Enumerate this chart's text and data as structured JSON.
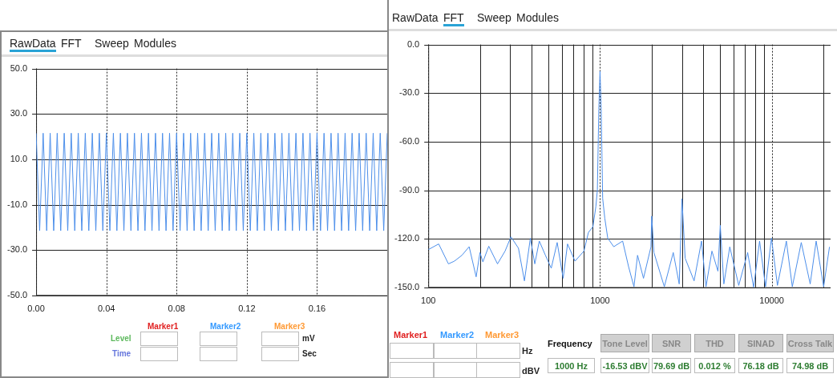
{
  "chart_data": [
    {
      "type": "line",
      "color": "#4d8fea",
      "grid": true,
      "line_style": "solid",
      "xlim": [
        0,
        0.2
      ],
      "ylim": [
        -50,
        50
      ],
      "xticks": [
        {
          "value": 0,
          "label": "0.00"
        },
        {
          "value": 0.04,
          "label": "0.04"
        },
        {
          "value": 0.08,
          "label": "0.08"
        },
        {
          "value": 0.12,
          "label": "0.12"
        },
        {
          "value": 0.16,
          "label": "0.16"
        }
      ],
      "yticks": [
        {
          "value": -50,
          "label": "-50.0"
        },
        {
          "value": -30,
          "label": "-30.0"
        },
        {
          "value": -10,
          "label": "-10.0"
        },
        {
          "value": 10,
          "label": "10.0"
        },
        {
          "value": 30,
          "label": "30.0"
        },
        {
          "value": 50,
          "label": "50.0"
        }
      ],
      "x": [
        0,
        0.002,
        0.004,
        0.006,
        0.008,
        0.01,
        0.012,
        0.014,
        0.016,
        0.018,
        0.02,
        0.022,
        0.024,
        0.026,
        0.028,
        0.03,
        0.032,
        0.034,
        0.036,
        0.038,
        0.04,
        0.042,
        0.044,
        0.046,
        0.048,
        0.05,
        0.052,
        0.054,
        0.056,
        0.058,
        0.06,
        0.062,
        0.064,
        0.066,
        0.068,
        0.07,
        0.072,
        0.074,
        0.076,
        0.078,
        0.08,
        0.082,
        0.084,
        0.086,
        0.088,
        0.09,
        0.092,
        0.094,
        0.096,
        0.098,
        0.1,
        0.102,
        0.104,
        0.106,
        0.108,
        0.11,
        0.112,
        0.114,
        0.116,
        0.118,
        0.12,
        0.122,
        0.124,
        0.126,
        0.128,
        0.13,
        0.132,
        0.134,
        0.136,
        0.138,
        0.14,
        0.142,
        0.144,
        0.146,
        0.148,
        0.15,
        0.152,
        0.154,
        0.156,
        0.158,
        0.16,
        0.162,
        0.164,
        0.166,
        0.168,
        0.17,
        0.172,
        0.174,
        0.176,
        0.178,
        0.18,
        0.182,
        0.184,
        0.186,
        0.188,
        0.19,
        0.192,
        0.194,
        0.196,
        0.198,
        0.2
      ],
      "values": [
        21.5,
        -21.5,
        21.5,
        -21.5,
        21.5,
        -21.5,
        21.5,
        -21.5,
        21.5,
        -21.5,
        21.5,
        -21.5,
        21.5,
        -21.5,
        21.5,
        -21.5,
        21.5,
        -21.5,
        21.5,
        -21.5,
        21.5,
        -21.5,
        21.5,
        -21.5,
        21.5,
        -21.5,
        21.5,
        -21.5,
        21.5,
        -21.5,
        21.5,
        -21.5,
        21.5,
        -21.5,
        21.5,
        -21.5,
        21.5,
        -21.5,
        21.5,
        -21.5,
        21.5,
        -21.5,
        21.5,
        -21.5,
        21.5,
        -21.5,
        21.5,
        -21.5,
        21.5,
        -21.5,
        21.5,
        -21.5,
        21.5,
        -21.5,
        21.5,
        -21.5,
        21.5,
        -21.5,
        21.5,
        -21.5,
        21.5,
        -21.5,
        21.5,
        -21.5,
        21.5,
        -21.5,
        21.5,
        -21.5,
        21.5,
        -21.5,
        21.5,
        -21.5,
        21.5,
        -21.5,
        21.5,
        -21.5,
        21.5,
        -21.5,
        21.5,
        -21.5,
        21.5,
        -21.5,
        21.5,
        -21.5,
        21.5,
        -21.5,
        21.5,
        -21.5,
        21.5,
        -21.5,
        21.5,
        -21.5,
        21.5,
        -21.5,
        21.5,
        -21.5,
        21.5,
        -21.5,
        21.5,
        -21.5,
        21.5
      ],
      "annotations": [
        "RawData",
        "FFT",
        "Sweep",
        "Modules",
        "Marker1",
        "Marker2",
        "Marker3",
        "Level",
        "Time",
        "mV",
        "Sec"
      ]
    },
    {
      "type": "line",
      "color": "#4d8fea",
      "grid": true,
      "line_style": "solid",
      "log": "x",
      "xlim": [
        100,
        22000
      ],
      "ylim": [
        -150,
        0
      ],
      "xticks": [
        100,
        {
          "value": 200,
          "label": null
        },
        {
          "value": 300,
          "label": null
        },
        {
          "value": 400,
          "label": null
        },
        {
          "value": 500,
          "label": null
        },
        {
          "value": 600,
          "label": null
        },
        {
          "value": 700,
          "label": null
        },
        {
          "value": 800,
          "label": null
        },
        {
          "value": 900,
          "label": null
        },
        1000,
        {
          "value": 2000,
          "label": null
        },
        {
          "value": 3000,
          "label": null
        },
        {
          "value": 4000,
          "label": null
        },
        {
          "value": 5000,
          "label": null
        },
        {
          "value": 6000,
          "label": null
        },
        {
          "value": 7000,
          "label": null
        },
        {
          "value": 8000,
          "label": null
        },
        {
          "value": 9000,
          "label": null
        },
        10000,
        {
          "value": 20000,
          "label": null
        }
      ],
      "yticks": [
        {
          "value": -150,
          "label": "-150.0"
        },
        {
          "value": -120,
          "label": "-120.0"
        },
        {
          "value": -90,
          "label": "-90.0"
        },
        {
          "value": -60,
          "label": "-60.0"
        },
        {
          "value": -30,
          "label": "-30.0"
        },
        {
          "value": 0,
          "label": "0.0"
        }
      ],
      "x": [
        100,
        115,
        131,
        142,
        157,
        173,
        190,
        200,
        208,
        225,
        253,
        280,
        303,
        335,
        363,
        393,
        417,
        443,
        480,
        520,
        563,
        610,
        647,
        715,
        806,
        856,
        909,
        946,
        965,
        984,
        1000,
        1016,
        1036,
        1066,
        1109,
        1202,
        1354,
        1467,
        1576,
        1654,
        1791,
        1979,
        2000,
        2060,
        2368,
        2669,
        2891,
        3000,
        3131,
        3530,
        3899,
        4140,
        4483,
        4857,
        5012,
        5260,
        5696,
        6422,
        7238,
        7842,
        8493,
        9197,
        9961,
        10790,
        12160,
        13170,
        14850,
        16740,
        18130,
        20040,
        21680
      ],
      "values": [
        -126.7,
        -123.2,
        -135.5,
        -133.8,
        -130.2,
        -124.9,
        -143.5,
        -128.5,
        -134.3,
        -124.6,
        -135.5,
        -127.6,
        -118.8,
        -125.8,
        -146,
        -119.6,
        -135.5,
        -121.4,
        -130,
        -138.2,
        -122.3,
        -144.4,
        -123.2,
        -133.8,
        -127.6,
        -116.1,
        -112.6,
        -100,
        -90,
        -40,
        -16.5,
        -40,
        -95,
        -107.3,
        -119.6,
        -124.9,
        -121.4,
        -137.3,
        -149.6,
        -130.2,
        -144.4,
        -125,
        -106,
        -128.5,
        -149.6,
        -128.5,
        -147.9,
        -95.3,
        -132,
        -146,
        -121.4,
        -149.6,
        -127.6,
        -140,
        -111.7,
        -147.9,
        -125,
        -148.8,
        -128.5,
        -150,
        -121.4,
        -149.6,
        -119.6,
        -148.8,
        -121.4,
        -149.6,
        -122.3,
        -147.9,
        -121.4,
        -149.6,
        -125
      ],
      "annotations": [
        "RawData",
        "FFT",
        "Sweep",
        "Modules",
        "Marker1",
        "Marker2",
        "Marker3",
        "Hz",
        "dBV",
        "Frequency",
        "Tone Level",
        "SNR",
        "THD",
        "SINAD",
        "Cross Talk",
        "1000 Hz",
        "-16.53 dBV",
        "79.69 dB",
        "0.012 %",
        "76.18 dB",
        "74.98 dB"
      ]
    }
  ]
}
